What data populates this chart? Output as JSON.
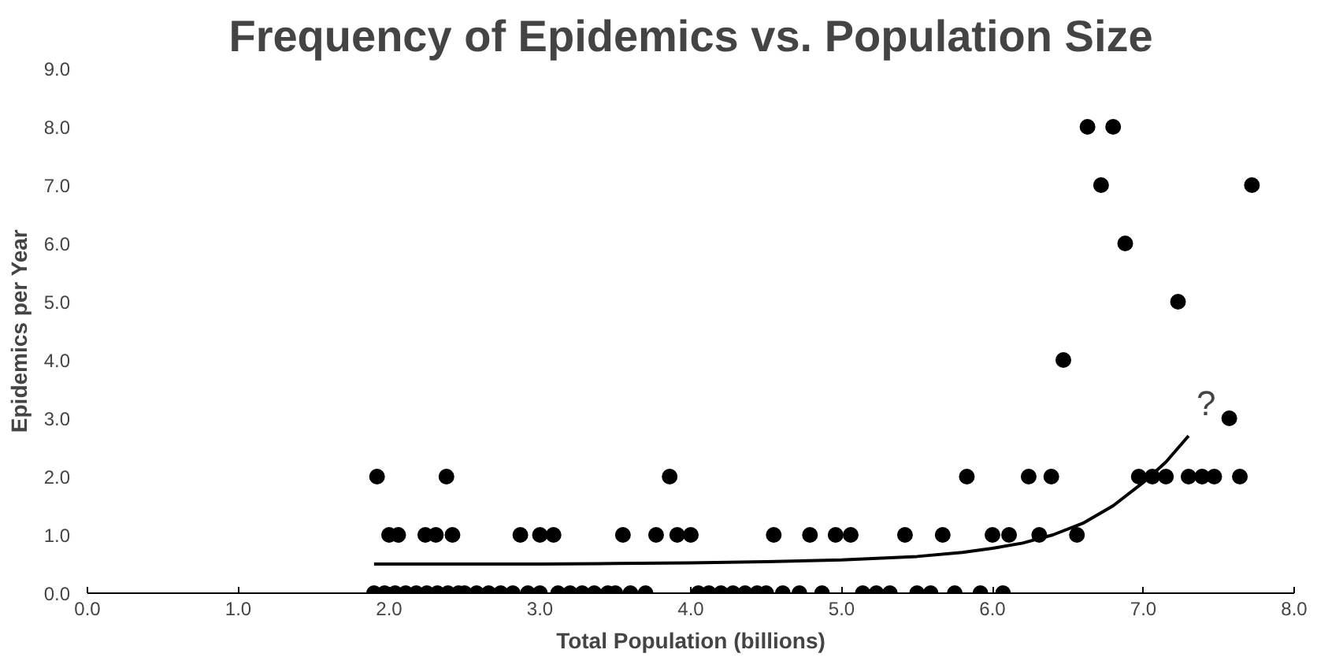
{
  "chart_data": {
    "type": "scatter",
    "title": "Frequency of Epidemics vs. Population Size",
    "xlabel": "Total Population (billions)",
    "ylabel": "Epidemics per Year",
    "xlim": [
      0,
      8
    ],
    "ylim": [
      0,
      9
    ],
    "xticks": [
      {
        "value": 0,
        "label": "0.0"
      },
      {
        "value": 1,
        "label": "1.0"
      },
      {
        "value": 2,
        "label": "2.0"
      },
      {
        "value": 3,
        "label": "3.0"
      },
      {
        "value": 4,
        "label": "4.0"
      },
      {
        "value": 5,
        "label": "5.0"
      },
      {
        "value": 6,
        "label": "6.0"
      },
      {
        "value": 7,
        "label": "7.0"
      },
      {
        "value": 8,
        "label": "8.0"
      }
    ],
    "yticks": [
      {
        "value": 0,
        "label": "0.0"
      },
      {
        "value": 1,
        "label": "1.0"
      },
      {
        "value": 2,
        "label": "2.0"
      },
      {
        "value": 3,
        "label": "3.0"
      },
      {
        "value": 4,
        "label": "4.0"
      },
      {
        "value": 5,
        "label": "5.0"
      },
      {
        "value": 6,
        "label": "6.0"
      },
      {
        "value": 7,
        "label": "7.0"
      },
      {
        "value": 8,
        "label": "8.0"
      },
      {
        "value": 9,
        "label": "9.0"
      }
    ],
    "grid": false,
    "series": [
      {
        "marker": "circle",
        "color": "#000000",
        "x": [
          1.9,
          1.97,
          2.04,
          2.11,
          2.18,
          2.25,
          2.32,
          2.39,
          2.46,
          2.5,
          2.58,
          2.66,
          2.74,
          2.82,
          2.92,
          3.0,
          3.12,
          3.2,
          3.28,
          3.36,
          3.45,
          3.5,
          3.6,
          3.7,
          4.05,
          4.12,
          4.2,
          4.28,
          4.36,
          4.44,
          4.5,
          4.61,
          4.72,
          4.87,
          5.14,
          5.23,
          5.32,
          5.5,
          5.59,
          5.75,
          5.92,
          6.07,
          2.0,
          2.06,
          2.24,
          2.31,
          2.42,
          2.87,
          3.0,
          3.09,
          3.55,
          3.77,
          3.91,
          4.0,
          4.55,
          4.79,
          4.96,
          5.06,
          5.42,
          5.67,
          6.0,
          6.11,
          6.31,
          6.56,
          1.92,
          2.38,
          3.86,
          5.83,
          6.24,
          6.39,
          6.97,
          7.06,
          7.15,
          7.3,
          7.39,
          7.47,
          7.64,
          7.57,
          6.47,
          7.23,
          6.88,
          6.72,
          7.72,
          6.63,
          6.8
        ],
        "values": [
          0,
          0,
          0,
          0,
          0,
          0,
          0,
          0,
          0,
          0,
          0,
          0,
          0,
          0,
          0,
          0,
          0,
          0,
          0,
          0,
          0,
          0,
          0,
          0,
          0,
          0,
          0,
          0,
          0,
          0,
          0,
          0,
          0,
          0,
          0,
          0,
          0,
          0,
          0,
          0,
          0,
          0,
          1,
          1,
          1,
          1,
          1,
          1,
          1,
          1,
          1,
          1,
          1,
          1,
          1,
          1,
          1,
          1,
          1,
          1,
          1,
          1,
          1,
          1,
          2,
          2,
          2,
          2,
          2,
          2,
          2,
          2,
          2,
          2,
          2,
          2,
          2,
          3,
          4,
          5,
          6,
          7,
          7,
          8,
          8
        ]
      },
      {
        "type": "line",
        "color": "#000000",
        "x": [
          1.9,
          2.5,
          3.0,
          3.5,
          4.0,
          4.5,
          5.0,
          5.5,
          5.8,
          6.0,
          6.2,
          6.4,
          6.6,
          6.8,
          7.0,
          7.15,
          7.3
        ],
        "values": [
          0.5,
          0.5,
          0.5,
          0.51,
          0.52,
          0.54,
          0.57,
          0.63,
          0.7,
          0.77,
          0.86,
          1.0,
          1.2,
          1.5,
          1.9,
          2.25,
          2.7
        ]
      }
    ],
    "annotations": [
      "?"
    ]
  }
}
